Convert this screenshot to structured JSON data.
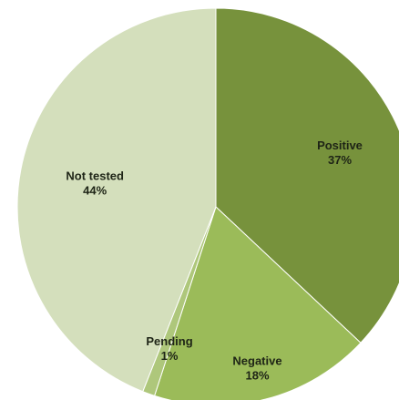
{
  "chart_data": {
    "type": "pie",
    "title": "",
    "slices": [
      {
        "label": "Positive",
        "value": 37,
        "value_label": "37%",
        "color": "#77923c"
      },
      {
        "label": "Negative",
        "value": 18,
        "value_label": "18%",
        "color": "#9bbb59"
      },
      {
        "label": "Pending",
        "value": 1,
        "value_label": "1%",
        "color": "#aec77b"
      },
      {
        "label": "Not tested",
        "value": 44,
        "value_label": "44%",
        "color": "#d4dfbc"
      }
    ],
    "start_angle": "12 o'clock",
    "direction": "clockwise",
    "legend": "none"
  }
}
